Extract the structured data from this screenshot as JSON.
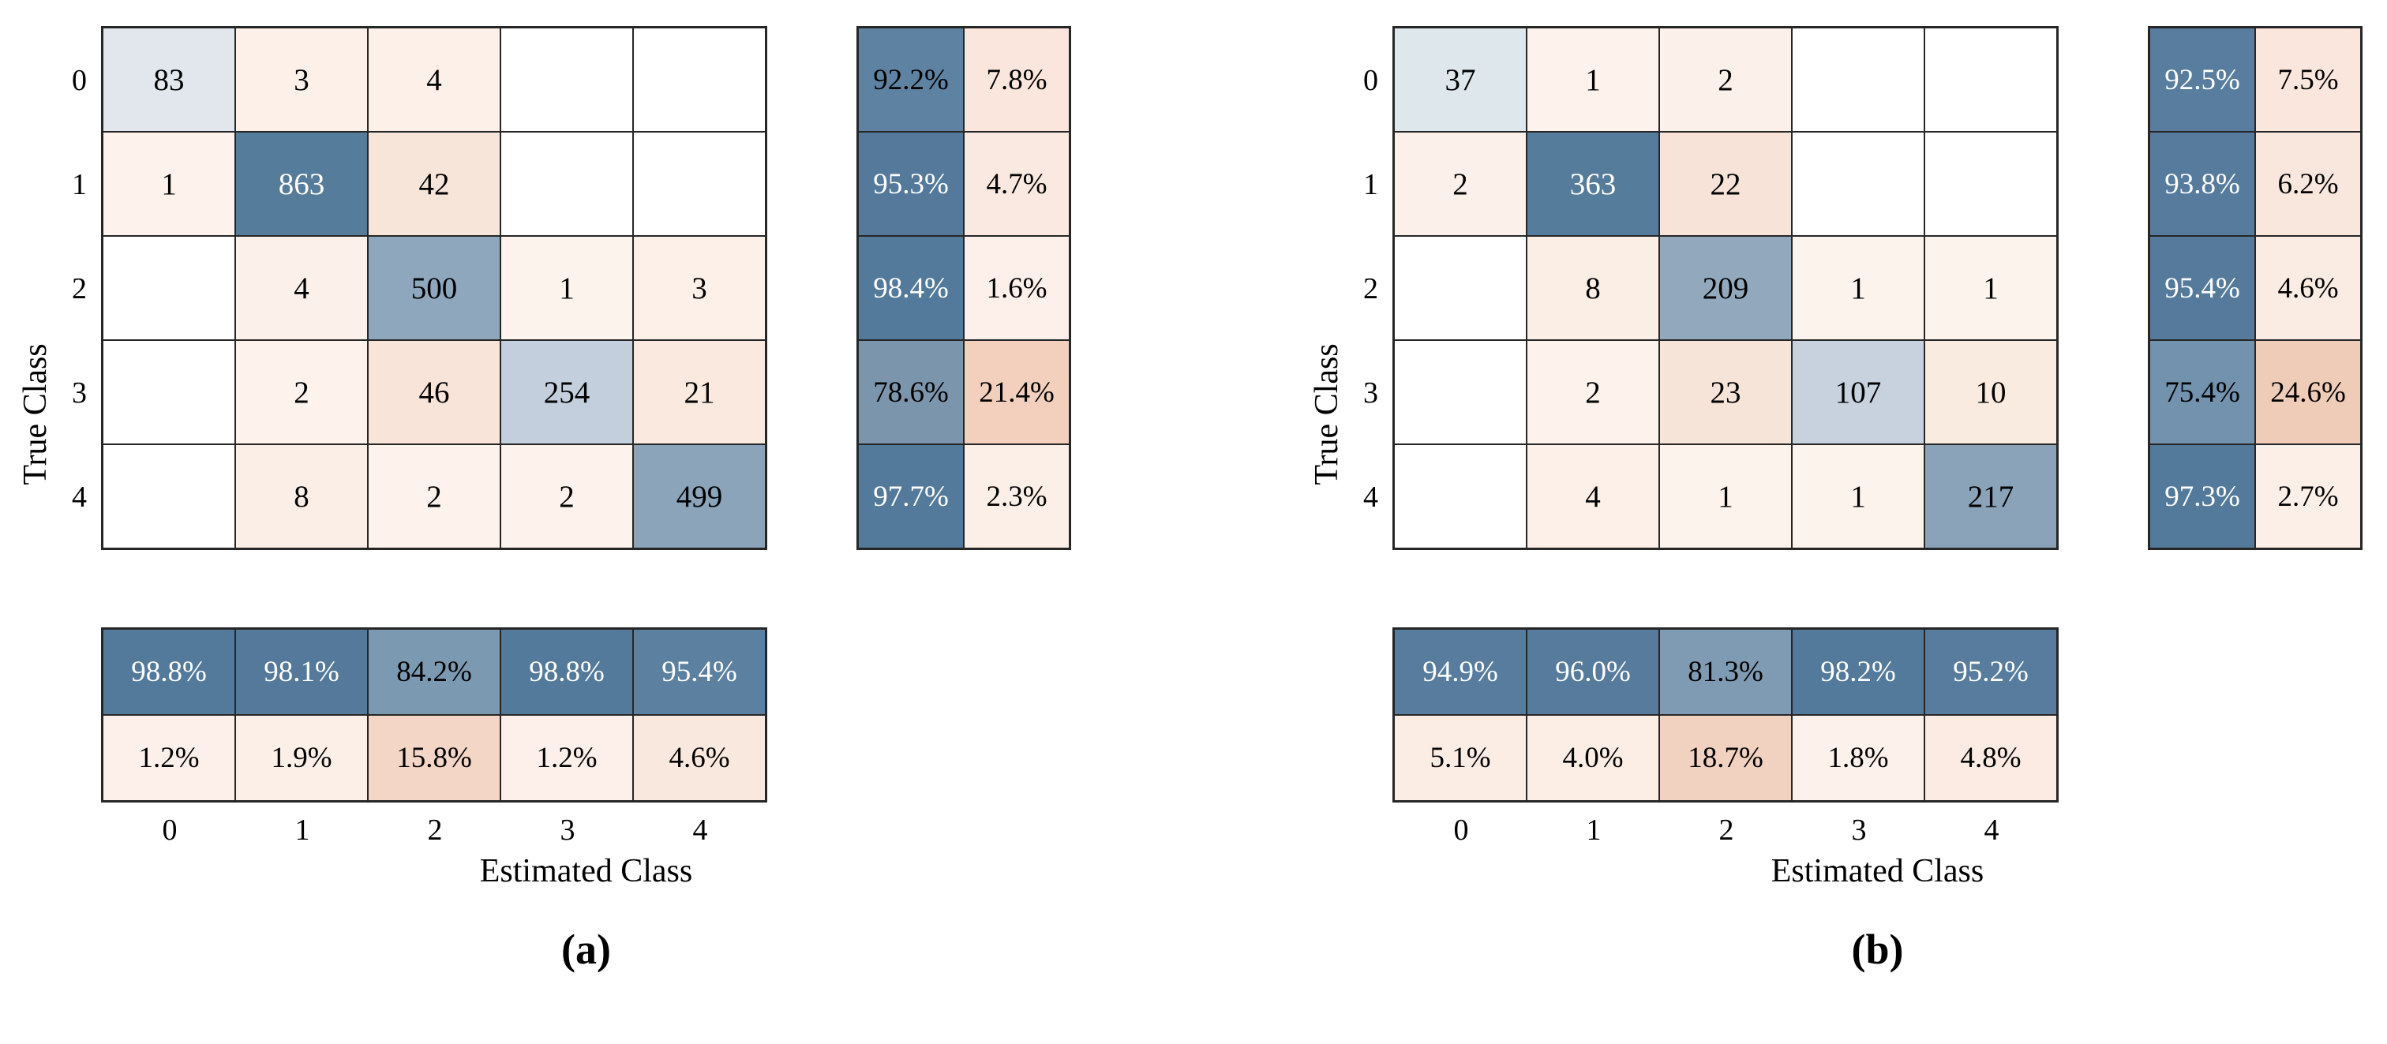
{
  "chart_data": [
    {
      "type": "heatmap",
      "panel": "a",
      "caption": "(a)",
      "xlabel": "Estimated Class",
      "ylabel": "True Class",
      "x_ticks": [
        "0",
        "1",
        "2",
        "3",
        "4"
      ],
      "y_ticks": [
        "0",
        "1",
        "2",
        "3",
        "4"
      ],
      "matrix": [
        [
          83,
          3,
          4,
          null,
          null
        ],
        [
          1,
          863,
          42,
          null,
          null
        ],
        [
          null,
          4,
          500,
          1,
          3
        ],
        [
          null,
          2,
          46,
          254,
          21
        ],
        [
          null,
          8,
          2,
          2,
          499
        ]
      ],
      "row_summary": [
        [
          92.2,
          7.8
        ],
        [
          95.3,
          4.7
        ],
        [
          98.4,
          1.6
        ],
        [
          78.6,
          21.4
        ],
        [
          97.7,
          2.3
        ]
      ],
      "col_summary": [
        [
          98.8,
          98.1,
          84.2,
          98.8,
          95.4
        ],
        [
          1.2,
          1.9,
          15.8,
          1.2,
          4.6
        ]
      ],
      "cell_bg": [
        [
          "#e2e7ee",
          "#fcf0e9",
          "#fcf0e9",
          "#ffffff",
          "#ffffff"
        ],
        [
          "#fdf2ec",
          "#567c9c",
          "#f8e5da",
          "#ffffff",
          "#ffffff"
        ],
        [
          "#ffffff",
          "#fcf1ea",
          "#8fa7bd",
          "#fdf3ed",
          "#fcf0e9"
        ],
        [
          "#ffffff",
          "#fdf2ec",
          "#f8e4d9",
          "#c3cfdc",
          "#f9e9df"
        ],
        [
          "#ffffff",
          "#fbeee6",
          "#fdf2ec",
          "#fdf2ec",
          "#8ba4ba"
        ]
      ],
      "cell_fg": [
        [
          "#000000",
          "#000000",
          "#000000",
          "#000000",
          "#000000"
        ],
        [
          "#000000",
          "#ffffff",
          "#000000",
          "#000000",
          "#000000"
        ],
        [
          "#000000",
          "#000000",
          "#000000",
          "#000000",
          "#000000"
        ],
        [
          "#000000",
          "#000000",
          "#000000",
          "#000000",
          "#000000"
        ],
        [
          "#000000",
          "#000000",
          "#000000",
          "#000000",
          "#000000"
        ]
      ],
      "row_summary_bg": [
        [
          "#5e83a2",
          "#fae6dd"
        ],
        [
          "#54799b",
          "#f9e9e0"
        ],
        [
          "#53799b",
          "#fdf0ea"
        ],
        [
          "#7b95ac",
          "#f2d0bd"
        ],
        [
          "#53799b",
          "#fcefe8"
        ]
      ],
      "row_summary_fg": [
        [
          "#000000",
          "#000000"
        ],
        [
          "#ffffff",
          "#000000"
        ],
        [
          "#ffffff",
          "#000000"
        ],
        [
          "#000000",
          "#000000"
        ],
        [
          "#ffffff",
          "#000000"
        ]
      ],
      "col_summary_bg": [
        [
          "#53799b",
          "#54799b",
          "#7b99b1",
          "#53799b",
          "#5b80a0"
        ],
        [
          "#fdf0ea",
          "#fcefe8",
          "#f3d6c5",
          "#fdf0ea",
          "#f9e8de"
        ]
      ],
      "col_summary_fg": [
        [
          "#ffffff",
          "#ffffff",
          "#000000",
          "#ffffff",
          "#ffffff"
        ],
        [
          "#000000",
          "#000000",
          "#000000",
          "#000000",
          "#000000"
        ]
      ]
    },
    {
      "type": "heatmap",
      "panel": "b",
      "caption": "(b)",
      "xlabel": "Estimated Class",
      "ylabel": "True Class",
      "x_ticks": [
        "0",
        "1",
        "2",
        "3",
        "4"
      ],
      "y_ticks": [
        "0",
        "1",
        "2",
        "3",
        "4"
      ],
      "matrix": [
        [
          37,
          1,
          2,
          null,
          null
        ],
        [
          2,
          363,
          22,
          null,
          null
        ],
        [
          null,
          8,
          209,
          1,
          1
        ],
        [
          null,
          2,
          23,
          107,
          10
        ],
        [
          null,
          4,
          1,
          1,
          217
        ]
      ],
      "row_summary": [
        [
          92.5,
          7.5
        ],
        [
          93.8,
          6.2
        ],
        [
          95.4,
          4.6
        ],
        [
          75.4,
          24.6
        ],
        [
          97.3,
          2.7
        ]
      ],
      "col_summary": [
        [
          94.9,
          96.0,
          81.3,
          98.2,
          95.2
        ],
        [
          5.1,
          4.0,
          18.7,
          1.8,
          4.8
        ]
      ],
      "cell_bg": [
        [
          "#dde7ec",
          "#fdf2ec",
          "#fcf1ea",
          "#ffffff",
          "#ffffff"
        ],
        [
          "#fcf1ea",
          "#567c9c",
          "#f7e3d8",
          "#ffffff",
          "#ffffff"
        ],
        [
          "#ffffff",
          "#fbeee5",
          "#92a9bd",
          "#fdf3ed",
          "#fdf3ed"
        ],
        [
          "#ffffff",
          "#fdf2ec",
          "#f7e4d9",
          "#c7d2de",
          "#faebe1"
        ],
        [
          "#ffffff",
          "#fcf0e9",
          "#fdf3ed",
          "#fdf3ed",
          "#8aa3b9"
        ]
      ],
      "cell_fg": [
        [
          "#000000",
          "#000000",
          "#000000",
          "#000000",
          "#000000"
        ],
        [
          "#000000",
          "#ffffff",
          "#000000",
          "#000000",
          "#000000"
        ],
        [
          "#000000",
          "#000000",
          "#000000",
          "#000000",
          "#000000"
        ],
        [
          "#000000",
          "#000000",
          "#000000",
          "#000000",
          "#000000"
        ],
        [
          "#000000",
          "#000000",
          "#000000",
          "#000000",
          "#000000"
        ]
      ],
      "row_summary_bg": [
        [
          "#587d9e",
          "#fae6dc"
        ],
        [
          "#567b9d",
          "#f9e7dd"
        ],
        [
          "#557a9c",
          "#fbece3"
        ],
        [
          "#7292ad",
          "#efccb8"
        ],
        [
          "#53799b",
          "#fcefe8"
        ]
      ],
      "row_summary_fg": [
        [
          "#ffffff",
          "#000000"
        ],
        [
          "#ffffff",
          "#000000"
        ],
        [
          "#ffffff",
          "#000000"
        ],
        [
          "#000000",
          "#000000"
        ],
        [
          "#ffffff",
          "#000000"
        ]
      ],
      "col_summary_bg": [
        [
          "#577c9e",
          "#567b9d",
          "#7e9bb3",
          "#53799b",
          "#577c9e"
        ],
        [
          "#fbece4",
          "#fcede5",
          "#f1d1bf",
          "#fdf1eb",
          "#fbebe2"
        ]
      ],
      "col_summary_fg": [
        [
          "#ffffff",
          "#ffffff",
          "#000000",
          "#ffffff",
          "#ffffff"
        ],
        [
          "#000000",
          "#000000",
          "#000000",
          "#000000",
          "#000000"
        ]
      ]
    }
  ]
}
